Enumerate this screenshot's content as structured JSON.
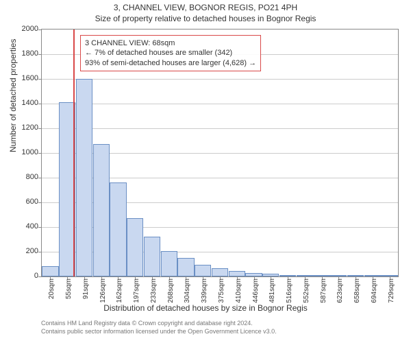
{
  "title": "3, CHANNEL VIEW, BOGNOR REGIS, PO21 4PH",
  "subtitle": "Size of property relative to detached houses in Bognor Regis",
  "chart": {
    "type": "bar",
    "ylabel": "Number of detached properties",
    "xlabel": "Distribution of detached houses by size in Bognor Regis",
    "ylim": [
      0,
      2000
    ],
    "yticks": [
      0,
      200,
      400,
      600,
      800,
      1000,
      1200,
      1400,
      1600,
      1800,
      2000
    ],
    "x_categories": [
      "20sqm",
      "55sqm",
      "91sqm",
      "126sqm",
      "162sqm",
      "197sqm",
      "233sqm",
      "268sqm",
      "304sqm",
      "339sqm",
      "375sqm",
      "410sqm",
      "446sqm",
      "481sqm",
      "516sqm",
      "552sqm",
      "587sqm",
      "623sqm",
      "658sqm",
      "694sqm",
      "729sqm"
    ],
    "values": [
      85,
      1410,
      1600,
      1070,
      760,
      475,
      320,
      205,
      150,
      95,
      65,
      45,
      30,
      20,
      12,
      8,
      5,
      3,
      2,
      1,
      1
    ],
    "bar_fill": "#c9d8f0",
    "bar_border": "#6a8fc4",
    "grid_color": "#cccccc",
    "background_color": "#ffffff",
    "axis_color": "#888888",
    "reference_line": {
      "position_sqm": 68,
      "color": "#d94848"
    },
    "annotation": {
      "line1": "3 CHANNEL VIEW: 68sqm",
      "line2": "← 7% of detached houses are smaller (342)",
      "line3": "93% of semi-detached houses are larger (4,628) →",
      "border_color": "#d94848"
    }
  },
  "footer": {
    "line1": "Contains HM Land Registry data © Crown copyright and database right 2024.",
    "line2": "Contains public sector information licensed under the Open Government Licence v3.0."
  }
}
